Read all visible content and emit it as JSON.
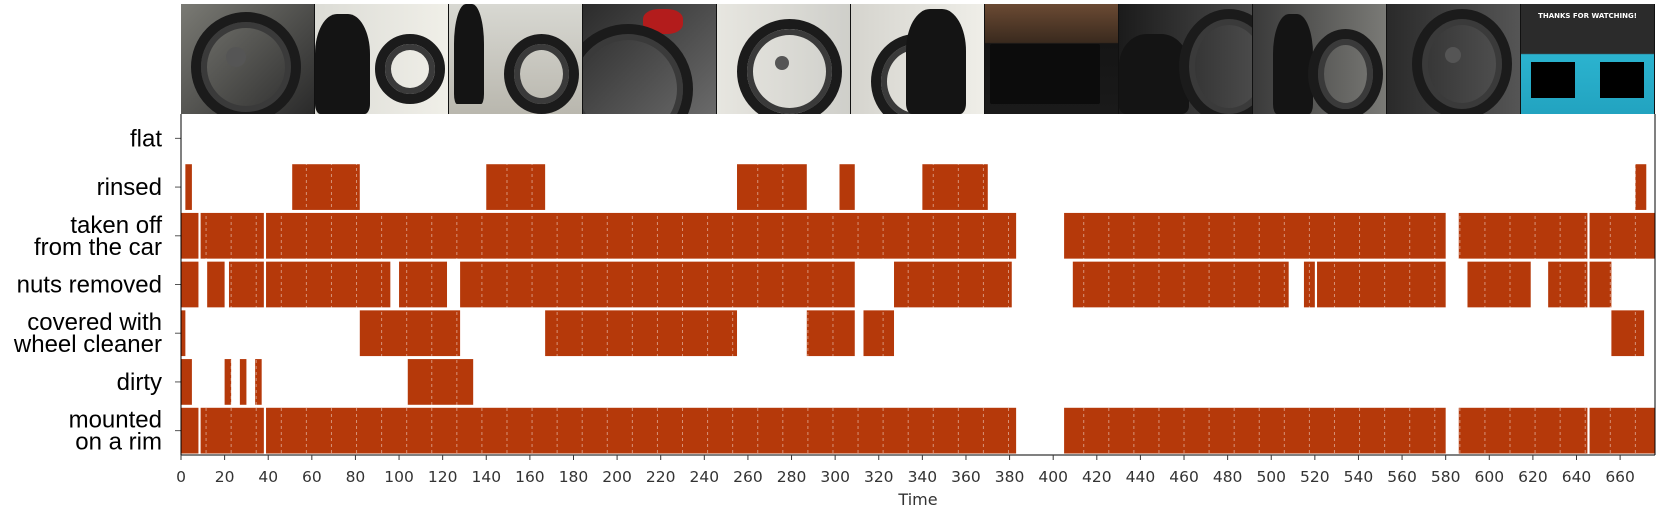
{
  "chart_data": {
    "type": "timeline",
    "xlabel": "Time",
    "xlim": [
      0,
      676
    ],
    "xticks": [
      0,
      20,
      40,
      60,
      80,
      100,
      120,
      140,
      160,
      180,
      200,
      220,
      240,
      260,
      280,
      300,
      320,
      340,
      360,
      380,
      400,
      420,
      440,
      460,
      480,
      500,
      520,
      540,
      560,
      580,
      600,
      620,
      640,
      660
    ],
    "bar_color": "#b5390a",
    "frame_times": [
      0,
      11.5,
      23,
      34.5,
      46,
      57.5,
      69,
      80.5,
      92,
      103.5,
      115,
      126.5,
      138,
      149.5,
      161,
      172.5,
      184,
      195.5,
      207,
      218.5,
      230,
      241.5,
      253,
      264.5,
      276,
      287.5,
      299,
      310.5,
      322,
      333.5,
      345,
      356.5,
      368,
      379.5,
      391,
      402.5,
      414,
      425.5,
      437,
      448.5,
      460,
      471.5,
      483,
      494.5,
      506,
      517.5,
      529,
      540.5,
      552,
      563.5,
      575,
      586.5,
      598,
      609.5,
      621,
      632.5,
      644,
      655.5,
      667
    ],
    "rows": [
      {
        "label_lines": [
          "flat"
        ],
        "segments": []
      },
      {
        "label_lines": [
          "rinsed"
        ],
        "segments": [
          [
            2,
            5
          ],
          [
            51,
            82
          ],
          [
            140,
            167
          ],
          [
            255,
            287
          ],
          [
            302,
            309
          ],
          [
            340,
            370
          ],
          [
            667,
            672
          ]
        ]
      },
      {
        "label_lines": [
          "taken off",
          "from the car"
        ],
        "segments": [
          [
            0,
            8
          ],
          [
            9,
            38
          ],
          [
            39,
            383
          ],
          [
            405,
            580
          ],
          [
            586,
            645
          ],
          [
            646,
            676
          ]
        ]
      },
      {
        "label_lines": [
          "nuts removed"
        ],
        "segments": [
          [
            0,
            8
          ],
          [
            12,
            20
          ],
          [
            22,
            38
          ],
          [
            39,
            96
          ],
          [
            100,
            122
          ],
          [
            128,
            309
          ],
          [
            327,
            381
          ],
          [
            409,
            508
          ],
          [
            515,
            520
          ],
          [
            521,
            580
          ],
          [
            590,
            619
          ],
          [
            627,
            645
          ],
          [
            646,
            656
          ]
        ]
      },
      {
        "label_lines": [
          "covered with",
          "wheel cleaner"
        ],
        "segments": [
          [
            0,
            2
          ],
          [
            82,
            128
          ],
          [
            167,
            255
          ],
          [
            287,
            309
          ],
          [
            313,
            327
          ],
          [
            656,
            671
          ]
        ]
      },
      {
        "label_lines": [
          "dirty"
        ],
        "segments": [
          [
            0,
            5
          ],
          [
            20,
            23
          ],
          [
            27,
            30
          ],
          [
            34,
            37
          ],
          [
            104,
            134
          ]
        ]
      },
      {
        "label_lines": [
          "mounted",
          "on a rim"
        ],
        "segments": [
          [
            0,
            8
          ],
          [
            9,
            38
          ],
          [
            39,
            383
          ],
          [
            405,
            580
          ],
          [
            586,
            645
          ],
          [
            646,
            676
          ]
        ]
      }
    ]
  },
  "thumbnails": {
    "end_card_title": "THANKS FOR WATCHING!",
    "scenes": [
      "wheel-closeup",
      "person-cleaning-wheel",
      "wheel-on-floor",
      "wheel-spokes-gloved-hand",
      "wheel-by-wall",
      "person-holding-wheel",
      "garage-workbench",
      "person-scrubbing-tire",
      "person-with-wheel",
      "wheel-closeup-2",
      "end-card"
    ]
  }
}
